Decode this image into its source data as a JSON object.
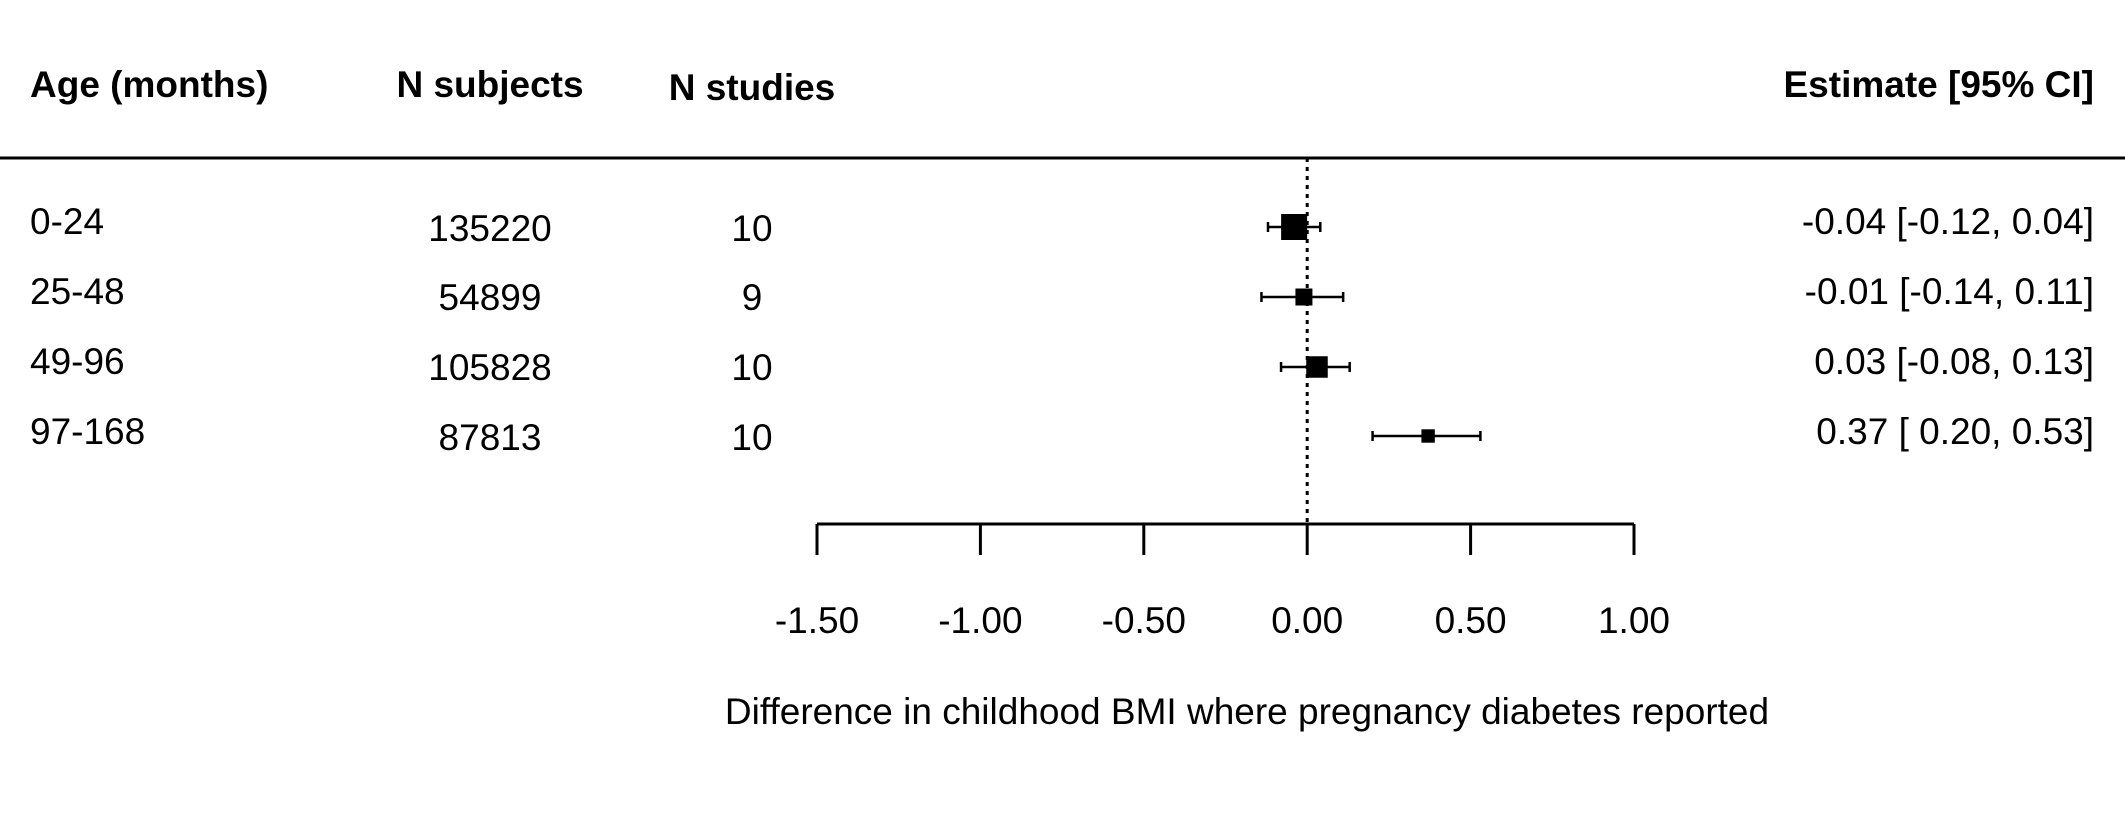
{
  "chart_data": {
    "type": "forest",
    "columns": {
      "age": "Age (months)",
      "n_subjects": "N subjects",
      "n_studies": "N studies",
      "estimate": "Estimate [95% CI]"
    },
    "rows": [
      {
        "age": "0-24",
        "n_subjects": "135220",
        "n_studies": "10",
        "estimate": -0.04,
        "ci_low": -0.12,
        "ci_high": 0.04,
        "estimate_text": "-0.04 [-0.12, 0.04]",
        "weight": 1.0
      },
      {
        "age": "25-48",
        "n_subjects": "54899",
        "n_studies": "9",
        "estimate": -0.01,
        "ci_low": -0.14,
        "ci_high": 0.11,
        "estimate_text": "-0.01 [-0.14, 0.11]",
        "weight": 0.5
      },
      {
        "age": "49-96",
        "n_subjects": "105828",
        "n_studies": "10",
        "estimate": 0.03,
        "ci_low": -0.08,
        "ci_high": 0.13,
        "estimate_text": "0.03 [-0.08, 0.13]",
        "weight": 0.75
      },
      {
        "age": "97-168",
        "n_subjects": "87813",
        "n_studies": "10",
        "estimate": 0.37,
        "ci_low": 0.2,
        "ci_high": 0.53,
        "estimate_text": "0.37 [ 0.20, 0.53]",
        "weight": 0.3
      }
    ],
    "x_ticks": [
      -1.5,
      -1.0,
      -0.5,
      0.0,
      0.5,
      1.0
    ],
    "x_tick_labels": [
      "-1.50",
      "-1.00",
      "-0.50",
      "0.00",
      "0.50",
      "1.00"
    ],
    "xlim": [
      -1.5,
      1.0
    ],
    "reference_line": 0,
    "xlabel": "Difference in childhood BMI where pregnancy diabetes reported"
  }
}
